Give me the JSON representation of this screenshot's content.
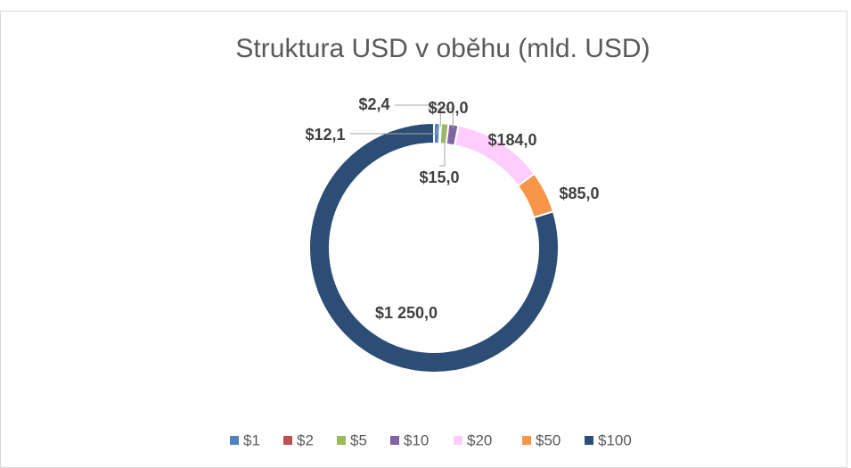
{
  "chart_data": {
    "type": "donut",
    "title": "Struktura USD v oběhu (mld. USD)",
    "categories": [
      "$1",
      "$2",
      "$5",
      "$10",
      "$20",
      "$50",
      "$100"
    ],
    "values": [
      12.1,
      2.4,
      15.0,
      20.0,
      184.0,
      85.0,
      1250.0
    ],
    "value_labels": [
      "$12,1",
      "$2,4",
      "$15,0",
      "$20,0",
      "$184,0",
      "$85,0",
      "$1 250,0"
    ],
    "colors": [
      "#4f81bd",
      "#c0504d",
      "#9bbb59",
      "#8064a2",
      "#ffccff",
      "#f79646",
      "#2c4d75"
    ],
    "legend": "bottom"
  }
}
